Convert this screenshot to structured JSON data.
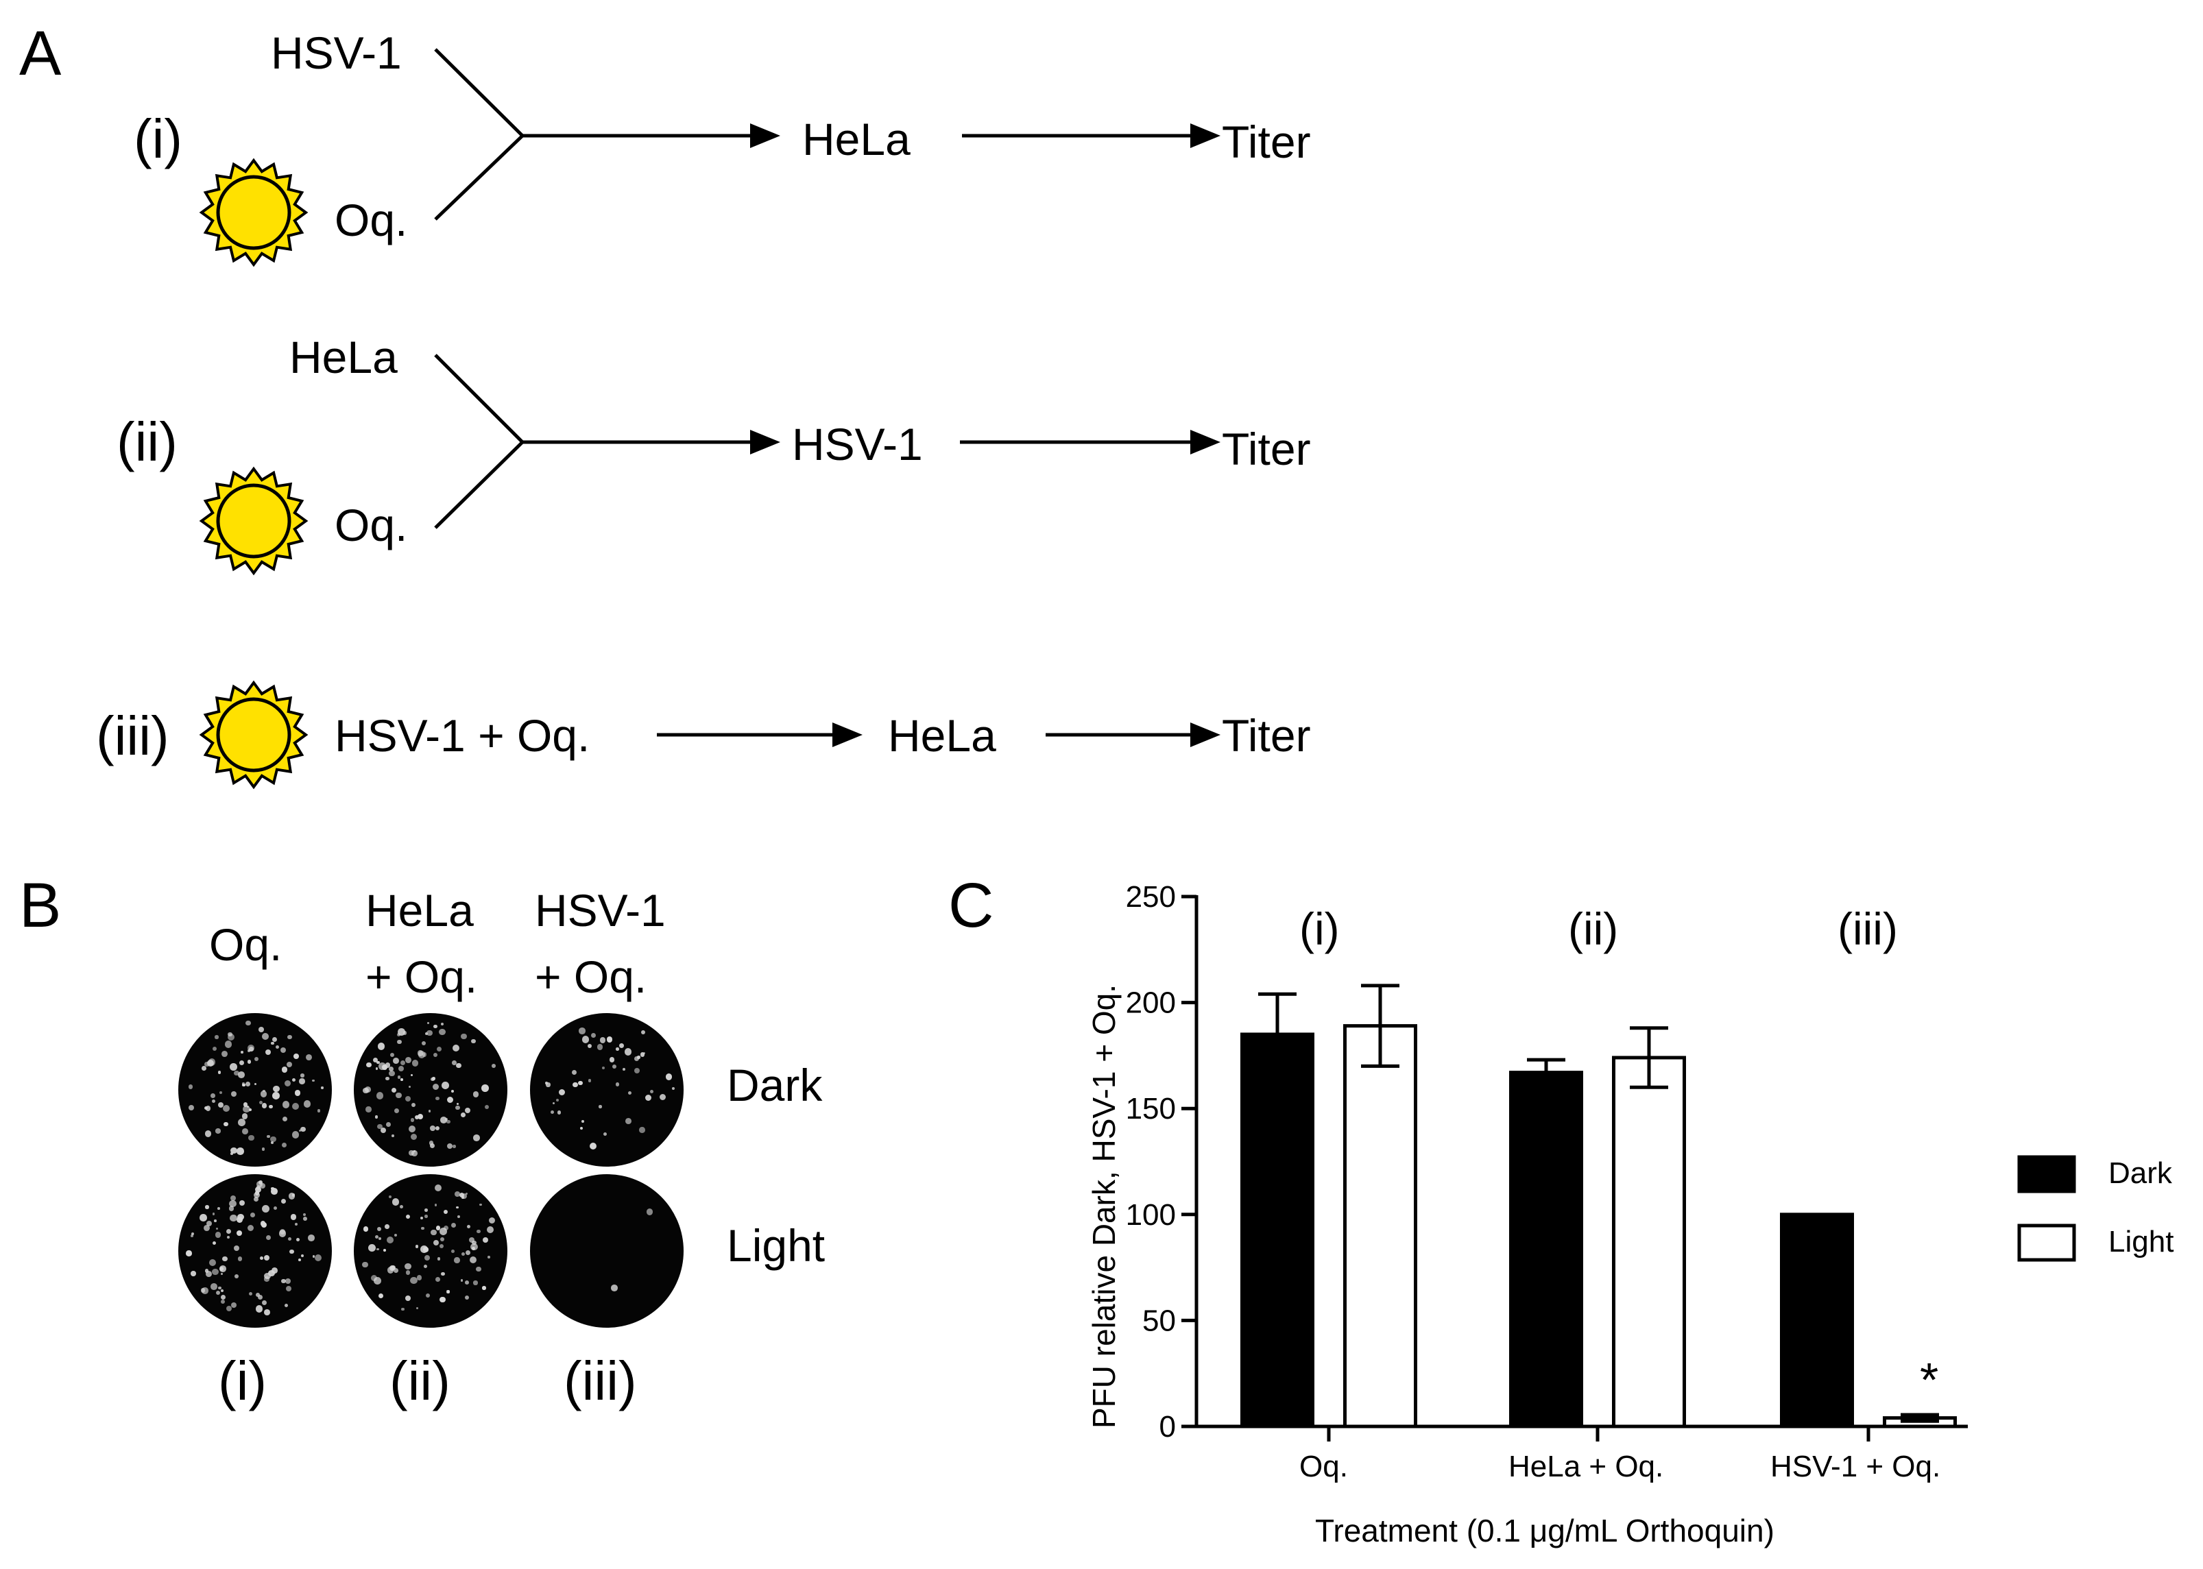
{
  "panel_a": {
    "letter": "A",
    "rows": [
      {
        "roman": "(i)",
        "input_top": "HSV-1",
        "input_bottom": "Oq.",
        "step": "HeLa",
        "result": "Titer"
      },
      {
        "roman": "(ii)",
        "input_top": "HeLa",
        "input_bottom": "Oq.",
        "step": "HSV-1",
        "result": "Titer"
      },
      {
        "roman": "(iii)",
        "input": "HSV-1 + Oq.",
        "step": "HeLa",
        "result": "Titer"
      }
    ],
    "sun_color": "#ffe100",
    "sun_stroke": "#000000",
    "icon": "sun-icon"
  },
  "panel_b": {
    "letter": "B",
    "columns": [
      {
        "header_line1": "Oq.",
        "header_line2": "",
        "roman": "(i)"
      },
      {
        "header_line1": "HeLa",
        "header_line2": "+ Oq.",
        "roman": "(ii)"
      },
      {
        "header_line1": "HSV-1",
        "header_line2": "+ Oq.",
        "roman": "(iii)"
      }
    ],
    "row_labels": [
      "Dark",
      "Light"
    ]
  },
  "panel_c": {
    "letter": "C"
  },
  "chart_data": {
    "type": "bar",
    "title": "",
    "xlabel": "Treatment (0.1 μg/mL Orthoquin)",
    "ylabel": "PFU relative Dark, HSV-1 + Oq.",
    "ylim": [
      0,
      250
    ],
    "yticks": [
      "0",
      "50",
      "100",
      "150",
      "200",
      "250"
    ],
    "categories": [
      "Oq.",
      "HeLa + Oq.",
      "HSV-1 + Oq."
    ],
    "group_labels": [
      "(i)",
      "(ii)",
      "(iii)"
    ],
    "series": [
      {
        "name": "Dark",
        "values": [
          185,
          167,
          100
        ],
        "error": [
          19,
          6,
          0
        ],
        "color": "#000000"
      },
      {
        "name": "Light",
        "values": [
          189,
          174,
          4
        ],
        "error": [
          19,
          14,
          1.5
        ],
        "color": "#ffffff"
      }
    ],
    "annotation": "*",
    "legend_position": "right",
    "grid": false
  }
}
